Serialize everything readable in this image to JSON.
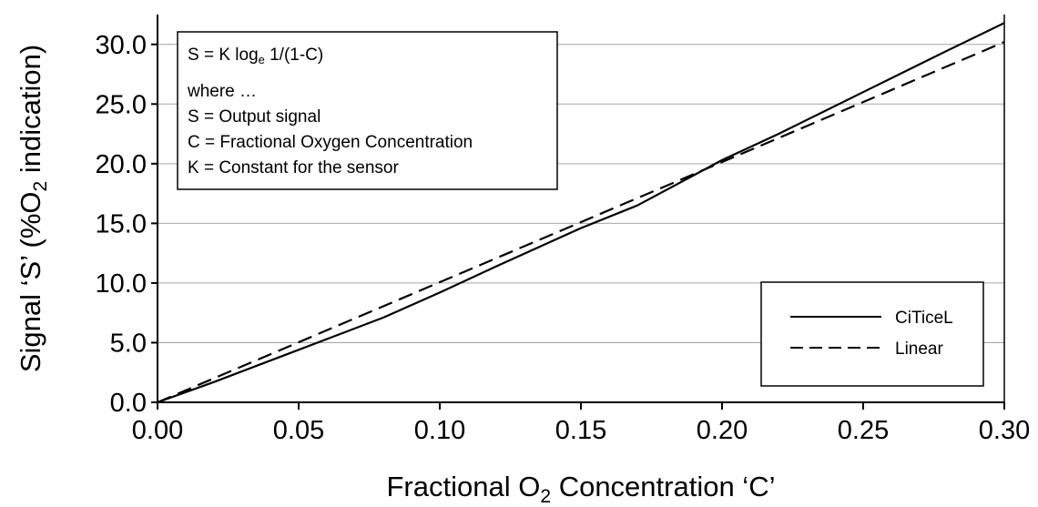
{
  "chart_data": {
    "type": "line",
    "xlabel": {
      "pre": "Fractional O",
      "sub": "2",
      "post": " Concentration ‘C’"
    },
    "ylabel": {
      "pre": "Signal ‘S’ (%O",
      "sub": "2",
      "post": " indication)"
    },
    "xlim": [
      0.0,
      0.3
    ],
    "ylim": [
      0.0,
      32.5
    ],
    "x_ticks": [
      "0.00",
      "0.05",
      "0.10",
      "0.15",
      "0.20",
      "0.25",
      "0.30"
    ],
    "y_ticks": [
      "0.0",
      "5.0",
      "10.0",
      "15.0",
      "20.0",
      "25.0",
      "30.0"
    ],
    "grid": "horizontal",
    "legend_position": "bottom-right",
    "series": [
      {
        "name": "CiTiceL",
        "style": "solid",
        "x": [
          0.0,
          0.02,
          0.05,
          0.08,
          0.1,
          0.12,
          0.15,
          0.17,
          0.2,
          0.22,
          0.25,
          0.28,
          0.3
        ],
        "y": [
          0.0,
          1.7,
          4.4,
          7.1,
          9.2,
          11.4,
          14.6,
          16.5,
          20.3,
          22.5,
          26.0,
          29.5,
          31.8
        ]
      },
      {
        "name": "Linear",
        "style": "dashed",
        "x": [
          0.0,
          0.3
        ],
        "y": [
          0.0,
          30.2
        ]
      }
    ],
    "annotation": {
      "formula": {
        "pre": "S = K log",
        "sub": "e",
        "post": " 1/(1-C)"
      },
      "lines": [
        "where …",
        "S = Output signal",
        "C = Fractional Oxygen Concentration",
        "K = Constant for the sensor"
      ]
    }
  }
}
